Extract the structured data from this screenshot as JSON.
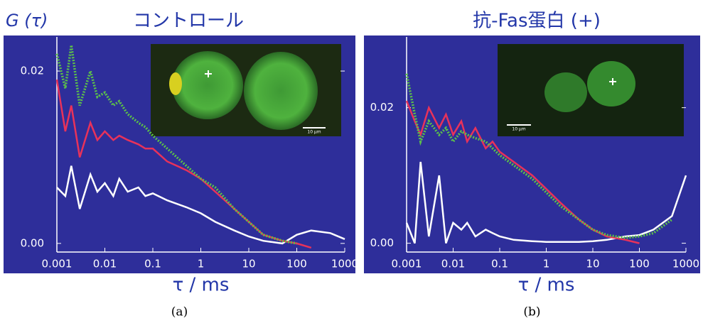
{
  "chart_data": [
    {
      "type": "line",
      "title": "コントロール",
      "ylabel": "G (τ)",
      "xlabel": "τ / ms",
      "caption": "(a)",
      "inset_scale_label": "10 μm",
      "log_x": true,
      "xlim": [
        0.001,
        1000
      ],
      "ylim": [
        -0.001,
        0.0233
      ],
      "xticks": [
        0.001,
        0.01,
        0.1,
        1,
        10,
        100,
        1000
      ],
      "yticks": [
        {
          "value": 0,
          "label": "0.00"
        },
        0.02
      ],
      "x": [
        0.001,
        0.0015,
        0.002,
        0.003,
        0.005,
        0.007,
        0.01,
        0.015,
        0.02,
        0.03,
        0.05,
        0.07,
        0.1,
        0.2,
        0.5,
        1,
        2,
        5,
        10,
        20,
        50,
        100,
        200,
        500,
        1000
      ],
      "series": [
        {
          "color": "#ffffff",
          "style": "solid",
          "values": [
            0.0065,
            0.0055,
            0.009,
            0.004,
            0.008,
            0.006,
            0.007,
            0.0055,
            0.0075,
            0.006,
            0.0065,
            0.0055,
            0.0058,
            0.005,
            0.0042,
            0.0035,
            0.0025,
            0.0015,
            0.0008,
            0.0003,
            0.0,
            0.001,
            0.0015,
            0.0012,
            0.0005
          ]
        },
        {
          "color": "#e8325a",
          "style": "solid",
          "values": [
            0.019,
            0.013,
            0.016,
            0.01,
            0.014,
            0.012,
            0.013,
            0.012,
            0.0125,
            0.012,
            0.0115,
            0.011,
            0.011,
            0.0095,
            0.0085,
            0.0075,
            0.006,
            0.004,
            0.0025,
            0.001,
            0.0003,
            0.0,
            -0.0005,
            null,
            null
          ]
        },
        {
          "color": "#5cc04a",
          "style": "dotted",
          "values": [
            0.022,
            0.018,
            0.023,
            0.016,
            0.02,
            0.017,
            0.0175,
            0.016,
            0.0165,
            0.015,
            0.014,
            0.0135,
            0.0125,
            0.011,
            0.009,
            0.0075,
            0.0065,
            0.004,
            0.0025,
            0.001,
            0.0003,
            0.0,
            null,
            null,
            null
          ]
        }
      ]
    },
    {
      "type": "line",
      "title": "抗-Fas蛋白 (+)",
      "xlabel": "τ / ms",
      "caption": "(b)",
      "inset_scale_label": "10 μm",
      "log_x": true,
      "xlim": [
        0.001,
        1000
      ],
      "ylim": [
        -0.0013,
        0.0296
      ],
      "xticks": [
        0.001,
        0.01,
        0.1,
        1,
        10,
        100,
        1000
      ],
      "yticks": [
        {
          "value": 0,
          "label": "0.00"
        },
        0.02
      ],
      "x": [
        0.001,
        0.0015,
        0.002,
        0.003,
        0.005,
        0.007,
        0.01,
        0.015,
        0.02,
        0.03,
        0.05,
        0.07,
        0.1,
        0.2,
        0.5,
        1,
        2,
        5,
        10,
        20,
        50,
        100,
        200,
        500,
        1000
      ],
      "series": [
        {
          "color": "#ffffff",
          "style": "solid",
          "values": [
            0.003,
            0.0,
            0.012,
            0.001,
            0.01,
            0.0,
            0.003,
            0.002,
            0.003,
            0.001,
            0.002,
            0.0015,
            0.001,
            0.0005,
            0.0003,
            0.0002,
            0.0002,
            0.0002,
            0.0003,
            0.0005,
            0.001,
            0.0012,
            0.002,
            0.004,
            0.01
          ]
        },
        {
          "color": "#e8325a",
          "style": "solid",
          "values": [
            0.021,
            0.018,
            0.016,
            0.02,
            0.017,
            0.019,
            0.016,
            0.018,
            0.015,
            0.017,
            0.014,
            0.015,
            0.0135,
            0.012,
            0.01,
            0.008,
            0.006,
            0.0035,
            0.002,
            0.001,
            0.0005,
            0.0,
            null,
            null,
            null
          ]
        },
        {
          "color": "#5cc04a",
          "style": "dotted",
          "values": [
            0.025,
            0.019,
            0.015,
            0.018,
            0.016,
            0.017,
            0.015,
            0.0165,
            0.016,
            0.0155,
            0.015,
            0.014,
            0.013,
            0.0115,
            0.0095,
            0.0075,
            0.0055,
            0.0035,
            0.002,
            0.0012,
            0.0008,
            0.001,
            0.0015,
            0.0035,
            null
          ]
        }
      ]
    }
  ]
}
